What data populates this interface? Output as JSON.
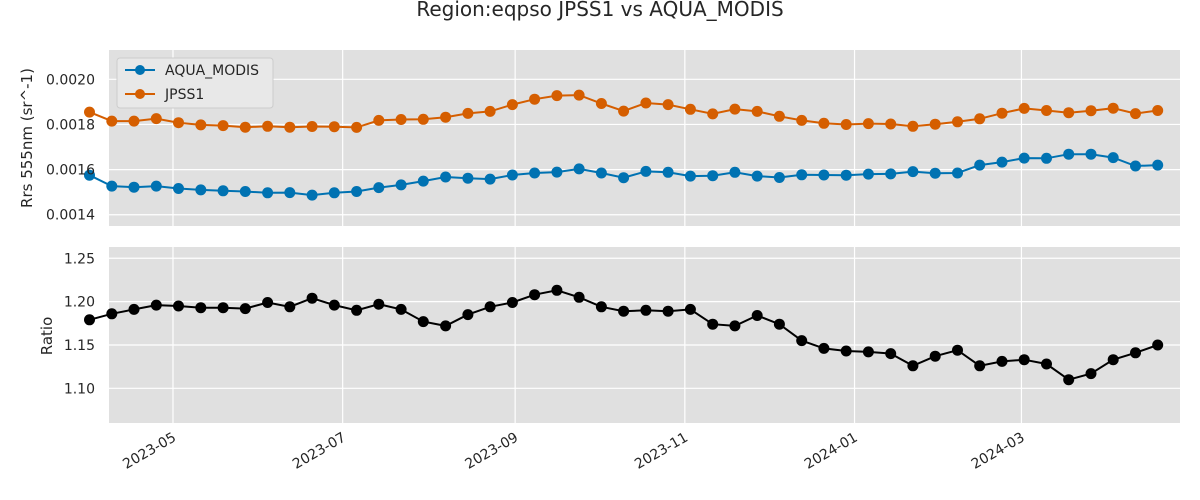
{
  "chart_data": {
    "type": "line",
    "title": "Region:eqpso JPSS1 vs AQUA_MODIS",
    "x": [
      "2023-04-01",
      "2023-04-09",
      "2023-04-17",
      "2023-04-25",
      "2023-05-03",
      "2023-05-11",
      "2023-05-19",
      "2023-05-27",
      "2023-06-04",
      "2023-06-12",
      "2023-06-20",
      "2023-06-28",
      "2023-07-06",
      "2023-07-14",
      "2023-07-22",
      "2023-07-30",
      "2023-08-07",
      "2023-08-15",
      "2023-08-23",
      "2023-08-31",
      "2023-09-08",
      "2023-09-16",
      "2023-09-24",
      "2023-10-02",
      "2023-10-10",
      "2023-10-18",
      "2023-10-26",
      "2023-11-03",
      "2023-11-11",
      "2023-11-19",
      "2023-11-27",
      "2023-12-05",
      "2023-12-13",
      "2023-12-21",
      "2023-12-29",
      "2024-01-06",
      "2024-01-14",
      "2024-01-22",
      "2024-01-30",
      "2024-02-07",
      "2024-02-15",
      "2024-02-23",
      "2024-03-02",
      "2024-03-10",
      "2024-03-18",
      "2024-03-26",
      "2024-04-03",
      "2024-04-11",
      "2024-04-19"
    ],
    "x_tick_labels": [
      "2023-05",
      "2023-07",
      "2023-09",
      "2023-11",
      "2024-01",
      "2024-03"
    ],
    "x_tick_dates": [
      "2023-05-01",
      "2023-07-01",
      "2023-09-01",
      "2023-11-01",
      "2024-01-01",
      "2024-03-01"
    ],
    "xlim": [
      "2023-04-08",
      "2024-04-27"
    ],
    "panels": [
      {
        "ylabel": "Rrs 555nm (sr^-1)",
        "ylim": [
          0.00135,
          0.00213
        ],
        "yticks": [
          0.0014,
          0.0016,
          0.0018,
          0.002
        ],
        "ytick_labels": [
          "0.0014",
          "0.0016",
          "0.0018",
          "0.0020"
        ],
        "legend_position": "top-left",
        "series": [
          {
            "name": "AQUA_MODIS",
            "color": "#0072b2",
            "values": [
              0.001575,
              0.001527,
              0.001522,
              0.001527,
              0.001516,
              0.00151,
              0.001506,
              0.001503,
              0.001497,
              0.001498,
              0.001487,
              0.001497,
              0.001503,
              0.00152,
              0.001532,
              0.001549,
              0.001567,
              0.001562,
              0.001558,
              0.001576,
              0.001585,
              0.001589,
              0.001603,
              0.001585,
              0.001564,
              0.001592,
              0.001588,
              0.001571,
              0.001573,
              0.001588,
              0.001571,
              0.001565,
              0.001577,
              0.001576,
              0.001575,
              0.00158,
              0.001581,
              0.001591,
              0.001584,
              0.001585,
              0.00162,
              0.001633,
              0.001651,
              0.00165,
              0.001668,
              0.001668,
              0.001653,
              0.001616,
              0.00162
            ]
          },
          {
            "name": "JPSS1",
            "color": "#d55e00",
            "values": [
              0.001855,
              0.001815,
              0.001815,
              0.001826,
              0.001808,
              0.001798,
              0.001795,
              0.001788,
              0.001792,
              0.001788,
              0.001791,
              0.00179,
              0.001787,
              0.001818,
              0.001822,
              0.001823,
              0.001832,
              0.001849,
              0.001858,
              0.001888,
              0.001912,
              0.001928,
              0.00193,
              0.001893,
              0.001859,
              0.001895,
              0.001888,
              0.001867,
              0.001847,
              0.001868,
              0.001858,
              0.001836,
              0.001818,
              0.001805,
              0.0018,
              0.001804,
              0.001802,
              0.001792,
              0.001801,
              0.001812,
              0.001825,
              0.00185,
              0.001871,
              0.001862,
              0.001852,
              0.001861,
              0.001872,
              0.001848,
              0.001862
            ]
          }
        ]
      },
      {
        "ylabel": "Ratio",
        "ylim": [
          1.06,
          1.263
        ],
        "yticks": [
          1.1,
          1.15,
          1.2,
          1.25
        ],
        "ytick_labels": [
          "1.10",
          "1.15",
          "1.20",
          "1.25"
        ],
        "series": [
          {
            "name": "",
            "color": "#000000",
            "values": [
              1.179,
              1.186,
              1.191,
              1.196,
              1.195,
              1.193,
              1.193,
              1.192,
              1.199,
              1.194,
              1.204,
              1.196,
              1.19,
              1.197,
              1.191,
              1.177,
              1.172,
              1.185,
              1.194,
              1.199,
              1.208,
              1.213,
              1.205,
              1.194,
              1.189,
              1.19,
              1.189,
              1.191,
              1.174,
              1.172,
              1.184,
              1.174,
              1.155,
              1.146,
              1.143,
              1.142,
              1.14,
              1.126,
              1.137,
              1.144,
              1.126,
              1.131,
              1.133,
              1.128,
              1.11,
              1.117,
              1.133,
              1.141,
              1.15
            ]
          }
        ]
      }
    ],
    "grid": true,
    "background": "#e0e0e0"
  }
}
